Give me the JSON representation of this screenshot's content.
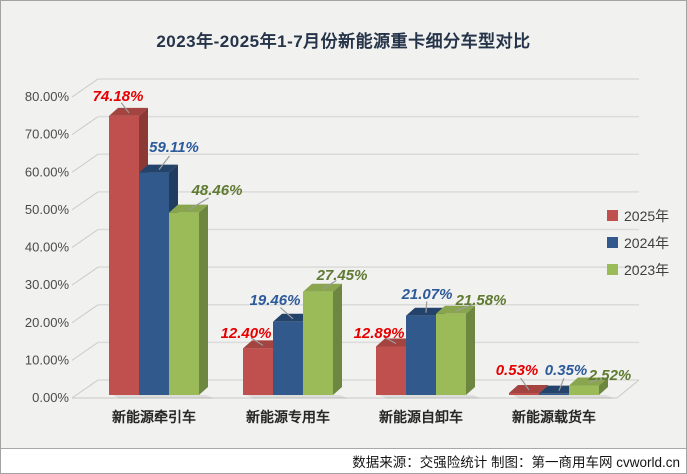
{
  "title": "2023年-2025年1-7月份新能源重卡细分车型对比",
  "source_note": "数据来源：交强险统计 制图：第一商用车网 cvworld.cn",
  "chart_data": {
    "type": "bar",
    "style": "3d-clustered-column",
    "title": "2023年-2025年1-7月份新能源重卡细分车型对比",
    "categories": [
      "新能源牵引车",
      "新能源专用车",
      "新能源自卸车",
      "新能源载货车"
    ],
    "series": [
      {
        "name": "2025年",
        "values": [
          74.18,
          12.4,
          12.89,
          0.53
        ],
        "labels": [
          "74.18%",
          "12.40%",
          "12.89%",
          "0.53%"
        ],
        "color": "#c0504d",
        "top_color": "#a34440",
        "side_color": "#8c3936",
        "label_color": "#e60000"
      },
      {
        "name": "2024年",
        "values": [
          59.11,
          19.46,
          21.07,
          0.35
        ],
        "labels": [
          "59.11%",
          "19.46%",
          "21.07%",
          "0.35%"
        ],
        "color": "#31598c",
        "top_color": "#24436b",
        "side_color": "#203c60",
        "label_color": "#2c5a9a"
      },
      {
        "name": "2023年",
        "values": [
          48.46,
          27.45,
          21.58,
          2.52
        ],
        "labels": [
          "48.46%",
          "27.45%",
          "21.58%",
          "2.52%"
        ],
        "color": "#9bbb59",
        "top_color": "#89a64e",
        "side_color": "#6d8740",
        "label_color": "#5f7a31"
      }
    ],
    "ylim": [
      0,
      80
    ],
    "ytick_step": 10,
    "yticks": [
      "0.00%",
      "10.00%",
      "20.00%",
      "30.00%",
      "40.00%",
      "50.00%",
      "60.00%",
      "70.00%",
      "80.00%"
    ],
    "unit": "percent",
    "grid": true,
    "legend_position": "right"
  },
  "colors": {
    "background": "#f1f1f0",
    "gridline": "#dbdbd9",
    "tick_line": "#c9c9c7",
    "leader_line": "#9b9b9b",
    "border": "#a8a8a8",
    "title_text": "#263449",
    "axis_text": "#4a4a4a",
    "category_text": "#262626",
    "legend_text": "#3f3f3f",
    "source_text": "#141414"
  }
}
